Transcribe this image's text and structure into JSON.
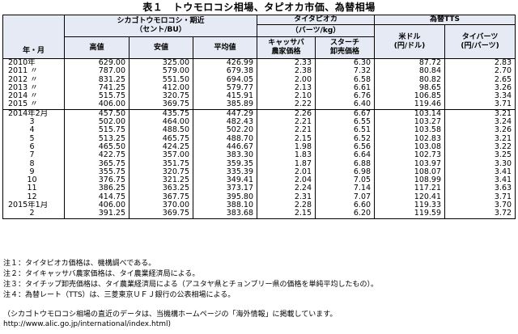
{
  "title": "表１　トウモロコシ相場、タピオカ市価、為替相場",
  "header": {
    "row_label": "年・月",
    "corn_group": "シカゴトウモロコシ・期近",
    "corn_unit": "（セント/BU）",
    "tapioca_group": "タイタピオカ",
    "tapioca_unit": "（バーツ/kg）",
    "fx_group": "為替TTS",
    "corn_high": "高値",
    "corn_low": "安値",
    "corn_avg": "平均値",
    "cassava_l1": "キャッサバ",
    "cassava_l2": "農家価格",
    "starch_l1": "スターチ",
    "starch_l2": "卸売価格",
    "usd_l1": "米ドル",
    "usd_l2": "(円/ドル)",
    "baht_l1": "タイバーツ",
    "baht_l2": "(円/バーツ)"
  },
  "rows": [
    {
      "label": "2010年",
      "c": [
        "629.00",
        "325.00",
        "426.99",
        "2.33",
        "6.30",
        "87.72",
        "2.83"
      ]
    },
    {
      "label": "2011 〃",
      "c": [
        "787.00",
        "579.00",
        "679.38",
        "2.38",
        "7.32",
        "80.84",
        "2.70"
      ]
    },
    {
      "label": "2012 〃",
      "c": [
        "831.25",
        "551.50",
        "694.05",
        "2.00",
        "6.58",
        "80.82",
        "2.65"
      ]
    },
    {
      "label": "2013 〃",
      "c": [
        "741.25",
        "412.00",
        "579.77",
        "2.13",
        "6.61",
        "98.65",
        "3.26"
      ]
    },
    {
      "label": "2014 〃",
      "c": [
        "515.75",
        "320.75",
        "415.91",
        "2.10",
        "6.76",
        "106.85",
        "3.34"
      ]
    },
    {
      "label": "2015 〃",
      "c": [
        "406.00",
        "369.75",
        "385.89",
        "2.22",
        "6.40",
        "119.46",
        "3.71"
      ]
    },
    {
      "label": "2014年2月",
      "c": [
        "457.50",
        "435.75",
        "447.29",
        "2.26",
        "6.67",
        "103.14",
        "3.21"
      ]
    },
    {
      "label": "3",
      "c": [
        "502.00",
        "464.00",
        "482.43",
        "2.21",
        "6.55",
        "103.27",
        "3.24"
      ]
    },
    {
      "label": "4",
      "c": [
        "515.75",
        "488.50",
        "502.20",
        "2.21",
        "6.51",
        "103.58",
        "3.26"
      ]
    },
    {
      "label": "5",
      "c": [
        "513.25",
        "465.75",
        "488.70",
        "2.15",
        "6.52",
        "102.83",
        "3.21"
      ]
    },
    {
      "label": "6",
      "c": [
        "465.50",
        "424.25",
        "446.67",
        "1.98",
        "6.56",
        "103.08",
        "3.22"
      ]
    },
    {
      "label": "7",
      "c": [
        "422.75",
        "357.00",
        "383.30",
        "1.83",
        "6.64",
        "102.73",
        "3.25"
      ]
    },
    {
      "label": "8",
      "c": [
        "365.75",
        "351.75",
        "359.35",
        "1.87",
        "6.88",
        "103.97",
        "3.30"
      ]
    },
    {
      "label": "9",
      "c": [
        "355.75",
        "320.75",
        "335.39",
        "2.01",
        "6.98",
        "108.07",
        "3.41"
      ]
    },
    {
      "label": "10",
      "c": [
        "376.75",
        "321.25",
        "349.41",
        "2.04",
        "7.05",
        "108.99",
        "3.41"
      ]
    },
    {
      "label": "11",
      "c": [
        "386.25",
        "363.25",
        "373.17",
        "2.24",
        "7.14",
        "117.21",
        "3.63"
      ]
    },
    {
      "label": "12",
      "c": [
        "414.75",
        "367.75",
        "395.80",
        "2.31",
        "7.07",
        "120.41",
        "3.71"
      ]
    },
    {
      "label": "2015年1月",
      "c": [
        "406.00",
        "370.00",
        "388.10",
        "2.28",
        "6.60",
        "119.33",
        "3.70"
      ]
    },
    {
      "label": "2",
      "c": [
        "391.25",
        "369.75",
        "383.68",
        "2.15",
        "6.20",
        "119.59",
        "3.72"
      ]
    }
  ],
  "notes": [
    "注１：タイタピオカ価格は、機構調べである。",
    "注２：タイキャッサバ農家価格は、タイ農業経済局による。",
    "注３：タイチップ卸売価格は、タイ農業経済局による（アユタヤ県とチョンブリー県の価格を単純平均したもの）。",
    "注４：為替レート（TTS）は、三菱東京ＵＦＪ銀行の公表相場による。"
  ],
  "footer": {
    "line1": "（シカゴトウモロコシ相場の直近のデータは、当機構ホームページの「海外情報」に掲載しています。",
    "url": "http://www.alic.go.jp/international/index.html)"
  }
}
